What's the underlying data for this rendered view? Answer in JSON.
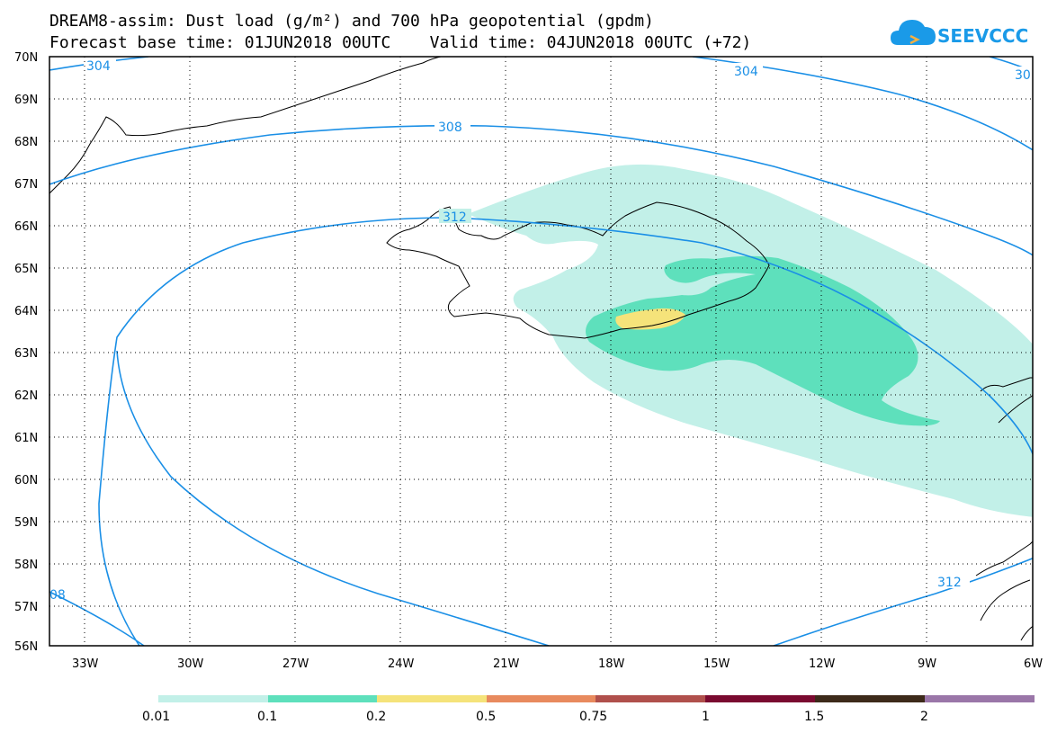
{
  "header": {
    "title_line1": "DREAM8-assim: Dust load (g/m²) and 700 hPa geopotential (gpdm)",
    "title_line2": "Forecast base time: 01JUN2018 00UTC    Valid time: 04JUN2018 00UTC (+72)"
  },
  "logo": {
    "text": "SEEVCCC",
    "icon": "cloud-icon"
  },
  "map": {
    "lat_range": [
      56,
      70
    ],
    "lon_range": [
      -34,
      -6
    ],
    "lat_labels": [
      "70N",
      "69N",
      "68N",
      "67N",
      "66N",
      "65N",
      "64N",
      "63N",
      "62N",
      "61N",
      "60N",
      "59N",
      "58N",
      "57N",
      "56N"
    ],
    "lon_labels": [
      "33W",
      "30W",
      "27W",
      "24W",
      "21W",
      "18W",
      "15W",
      "12W",
      "9W",
      "6W"
    ],
    "contour_color": "#1a8fe6",
    "contour_labels": [
      "304",
      "304",
      "30",
      "308",
      "312",
      "08",
      "312"
    ]
  },
  "colorbar": {
    "labels": [
      "0.01",
      "0.1",
      "0.2",
      "0.5",
      "0.75",
      "1",
      "1.5",
      "2"
    ],
    "colors": [
      "#c2f0e8",
      "#5ee0bc",
      "#f5e37a",
      "#e88a5e",
      "#b0504c",
      "#7a0a30",
      "#3d2a1a",
      "#9a76a8"
    ]
  }
}
